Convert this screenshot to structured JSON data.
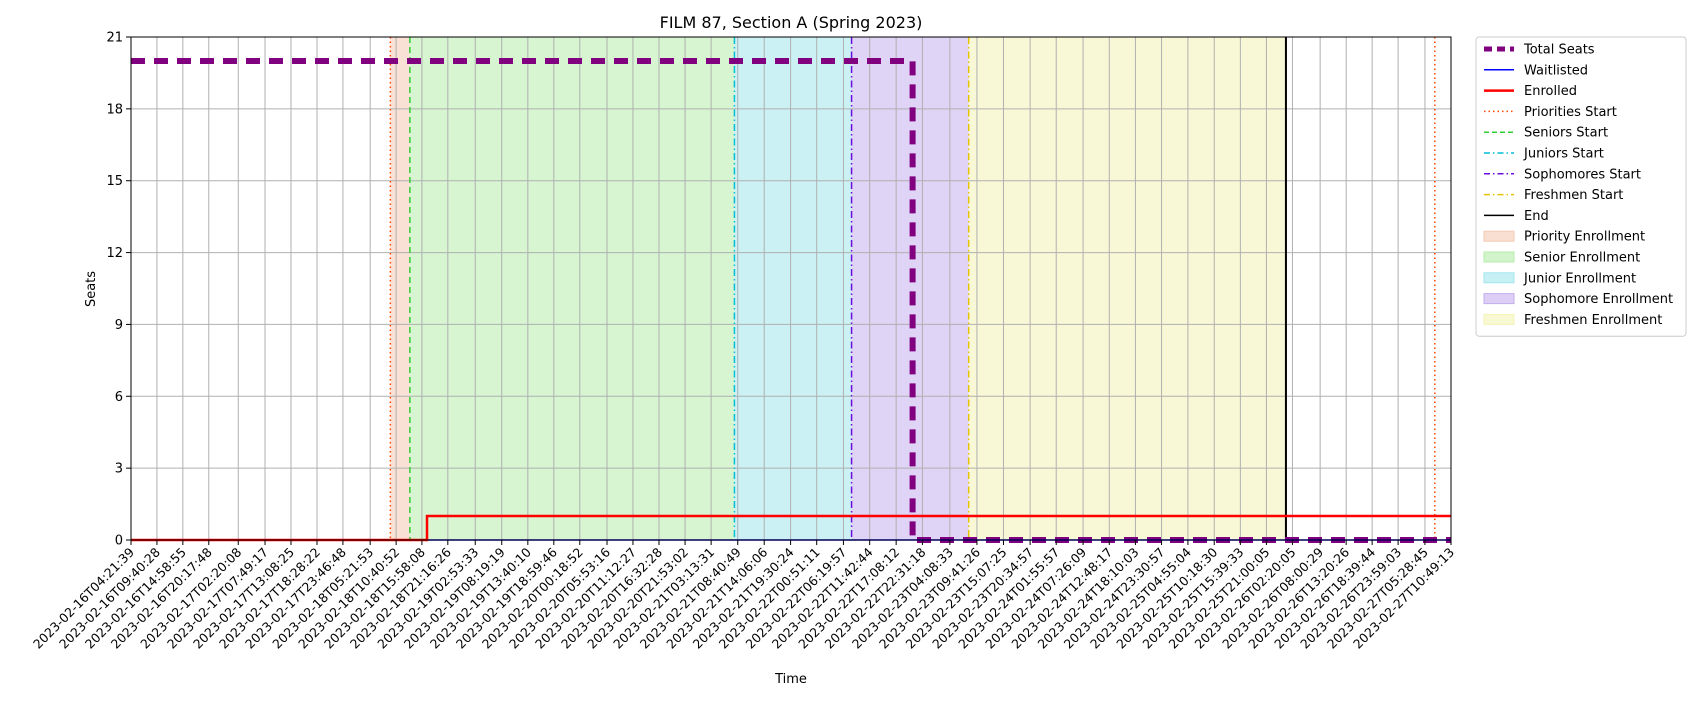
{
  "chart_data": {
    "type": "line",
    "title": "FILM 87, Section A (Spring 2023)",
    "xlabel": "Time",
    "ylabel": "Seats",
    "ylim": [
      0,
      21
    ],
    "yticks": [
      0,
      3,
      6,
      9,
      12,
      15,
      18,
      21
    ],
    "grid": true,
    "legend_position": "outside-right",
    "xlim": [
      "2023-02-16T04:21:39",
      "2023-02-27T10:49:13"
    ],
    "xticks": [
      "2023-02-16T04:21:39",
      "2023-02-16T09:40:28",
      "2023-02-16T14:58:55",
      "2023-02-16T20:17:48",
      "2023-02-17T02:20:08",
      "2023-02-17T07:49:17",
      "2023-02-17T13:08:25",
      "2023-02-17T18:28:22",
      "2023-02-17T23:46:48",
      "2023-02-18T05:21:53",
      "2023-02-18T10:40:52",
      "2023-02-18T15:58:08",
      "2023-02-18T21:16:26",
      "2023-02-19T02:53:33",
      "2023-02-19T08:19:19",
      "2023-02-19T13:40:10",
      "2023-02-19T18:59:46",
      "2023-02-20T00:18:52",
      "2023-02-20T05:53:16",
      "2023-02-20T11:12:27",
      "2023-02-20T16:32:28",
      "2023-02-20T21:53:02",
      "2023-02-21T03:13:31",
      "2023-02-21T08:40:49",
      "2023-02-21T14:06:06",
      "2023-02-21T19:30:24",
      "2023-02-22T00:51:11",
      "2023-02-22T06:19:57",
      "2023-02-22T11:42:44",
      "2023-02-22T17:08:12",
      "2023-02-22T22:31:18",
      "2023-02-23T04:08:33",
      "2023-02-23T09:41:26",
      "2023-02-23T15:07:25",
      "2023-02-23T20:34:57",
      "2023-02-24T01:55:57",
      "2023-02-24T07:26:09",
      "2023-02-24T12:48:17",
      "2023-02-24T18:10:03",
      "2023-02-24T23:30:57",
      "2023-02-25T04:55:04",
      "2023-02-25T10:18:30",
      "2023-02-25T15:39:33",
      "2023-02-25T21:00:05",
      "2023-02-26T02:20:05",
      "2023-02-26T08:00:29",
      "2023-02-26T13:20:26",
      "2023-02-26T18:39:44",
      "2023-02-26T23:59:03",
      "2023-02-27T05:28:45",
      "2023-02-27T10:49:13"
    ],
    "series": [
      {
        "name": "Total Seats",
        "color": "#800080",
        "style": "dashed",
        "steps": [
          {
            "x": "2023-02-16T04:21:39",
            "y": 20
          },
          {
            "x": "2023-02-22T20:30:00",
            "y": 20
          },
          {
            "x": "2023-02-22T20:30:00",
            "y": 0
          },
          {
            "x": "2023-02-27T10:49:13",
            "y": 0
          }
        ]
      },
      {
        "name": "Waitlisted",
        "color": "#0000ff",
        "style": "solid",
        "steps": [
          {
            "x": "2023-02-16T04:21:39",
            "y": 0
          },
          {
            "x": "2023-02-27T10:49:13",
            "y": 0
          }
        ]
      },
      {
        "name": "Enrolled",
        "color": "#ff0000",
        "style": "solid",
        "steps": [
          {
            "x": "2023-02-16T04:21:39",
            "y": 0
          },
          {
            "x": "2023-02-18T17:00:00",
            "y": 0
          },
          {
            "x": "2023-02-18T17:00:00",
            "y": 1
          },
          {
            "x": "2023-02-27T10:49:13",
            "y": 1
          }
        ]
      }
    ],
    "event_lines": [
      {
        "name": "Priorities Start",
        "x": "2023-02-18T09:30:00",
        "color": "#ff4500",
        "style": "dotted"
      },
      {
        "name": "Priorities Start",
        "x": "2023-02-27T07:30:00",
        "color": "#ff4500",
        "style": "dotted"
      },
      {
        "name": "Seniors Start",
        "x": "2023-02-18T13:30:00",
        "color": "#32cd32",
        "style": "dashed"
      },
      {
        "name": "Juniors Start",
        "x": "2023-02-21T08:00:00",
        "color": "#00bfd8",
        "style": "dashdot"
      },
      {
        "name": "Sophomores Start",
        "x": "2023-02-22T08:00:00",
        "color": "#6a0dde",
        "style": "dashdot"
      },
      {
        "name": "Freshmen Start",
        "x": "2023-02-23T08:00:00",
        "color": "#e6c200",
        "style": "dashdot"
      },
      {
        "name": "End",
        "x": "2023-02-26T01:00:00",
        "color": "#000000",
        "style": "solid"
      }
    ],
    "periods": [
      {
        "name": "Priority Enrollment",
        "start": "2023-02-18T09:30:00",
        "end": "2023-02-18T13:30:00",
        "color": "#f5c9b3"
      },
      {
        "name": "Senior Enrollment",
        "start": "2023-02-18T13:30:00",
        "end": "2023-02-21T08:00:00",
        "color": "#b4eda9"
      },
      {
        "name": "Junior Enrollment",
        "start": "2023-02-21T08:00:00",
        "end": "2023-02-22T08:00:00",
        "color": "#a1e6ec"
      },
      {
        "name": "Sophomore Enrollment",
        "start": "2023-02-22T08:00:00",
        "end": "2023-02-23T08:00:00",
        "color": "#c4aeee"
      },
      {
        "name": "Freshmen Enrollment",
        "start": "2023-02-23T08:00:00",
        "end": "2023-02-26T01:00:00",
        "color": "#f3f3b5"
      }
    ],
    "legend": [
      {
        "label": "Total Seats",
        "kind": "line",
        "color": "#800080",
        "style": "dashed-thick"
      },
      {
        "label": "Waitlisted",
        "kind": "line",
        "color": "#0000ff",
        "style": "solid"
      },
      {
        "label": "Enrolled",
        "kind": "line",
        "color": "#ff0000",
        "style": "solid-thick"
      },
      {
        "label": "Priorities Start",
        "kind": "line",
        "color": "#ff4500",
        "style": "dotted"
      },
      {
        "label": "Seniors Start",
        "kind": "line",
        "color": "#32cd32",
        "style": "dashed"
      },
      {
        "label": "Juniors Start",
        "kind": "line",
        "color": "#00bfd8",
        "style": "dashdot"
      },
      {
        "label": "Sophomores Start",
        "kind": "line",
        "color": "#6a0dde",
        "style": "dashdot"
      },
      {
        "label": "Freshmen Start",
        "kind": "line",
        "color": "#e6c200",
        "style": "dashdot"
      },
      {
        "label": "End",
        "kind": "line",
        "color": "#000000",
        "style": "solid"
      },
      {
        "label": "Priority Enrollment",
        "kind": "patch",
        "color": "#f5c9b3"
      },
      {
        "label": "Senior Enrollment",
        "kind": "patch",
        "color": "#b4eda9"
      },
      {
        "label": "Junior Enrollment",
        "kind": "patch",
        "color": "#a1e6ec"
      },
      {
        "label": "Sophomore Enrollment",
        "kind": "patch",
        "color": "#c4aeee"
      },
      {
        "label": "Freshmen Enrollment",
        "kind": "patch",
        "color": "#f3f3b5"
      }
    ]
  }
}
